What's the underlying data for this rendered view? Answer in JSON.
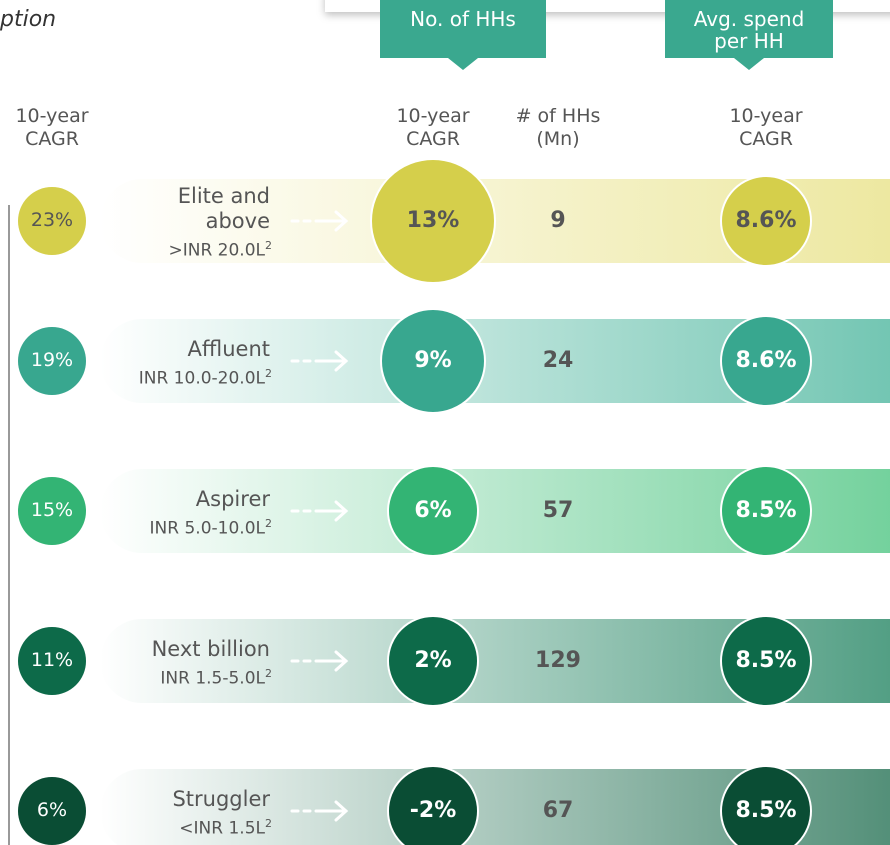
{
  "caption": "ption",
  "headers": {
    "households": "No. of HHs",
    "spend": "Avg. spend per HH"
  },
  "columns": {
    "segment_cagr": "10-year CAGR",
    "hh_cagr": "10-year CAGR",
    "hh_count": "# of HHs (Mn)",
    "spend_cagr": "10-year CAGR"
  },
  "footnote": "2",
  "rows": [
    {
      "segment_cagr": "23%",
      "name": "Elite and above",
      "range": ">INR 20.0L",
      "hh_cagr": "13%",
      "hh_count": "9",
      "spend_cagr": "8.6%",
      "color": "#d5cf4b",
      "band": "#ece79c"
    },
    {
      "segment_cagr": "19%",
      "name": "Affluent",
      "range": "INR 10.0-20.0L",
      "hh_cagr": "9%",
      "hh_count": "24",
      "spend_cagr": "8.6%",
      "color": "#38a78f",
      "band": "#6cc3af"
    },
    {
      "segment_cagr": "15%",
      "name": "Aspirer",
      "range": "INR 5.0-10.0L",
      "hh_cagr": "6%",
      "hh_count": "57",
      "spend_cagr": "8.5%",
      "color": "#33b474",
      "band": "#6dcf98"
    },
    {
      "segment_cagr": "11%",
      "name": "Next billion",
      "range": "INR 1.5-5.0L",
      "hh_cagr": "2%",
      "hh_count": "129",
      "spend_cagr": "8.5%",
      "color": "#0d6a49",
      "band": "#4a9a7e"
    },
    {
      "segment_cagr": "6%",
      "name": "Struggler",
      "range": "<INR 1.5L",
      "hh_cagr": "-2%",
      "hh_count": "67",
      "spend_cagr": "8.5%",
      "color": "#0a4d34",
      "band": "#4b8a72"
    }
  ]
}
